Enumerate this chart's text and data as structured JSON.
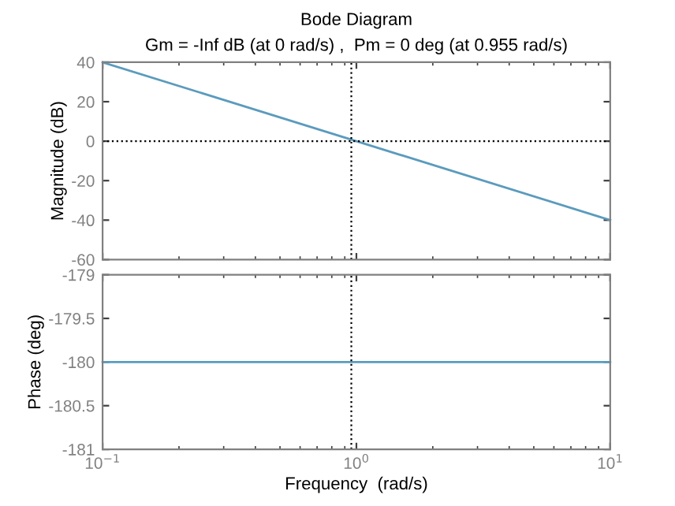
{
  "chart_data": [
    {
      "type": "line",
      "title": "Bode Diagram",
      "subtitle": "Gm = -Inf dB (at 0 rad/s) ,  Pm = 0 deg (at 0.955 rad/s)",
      "ylabel": "Magnitude (dB)",
      "log": "x",
      "x": [
        0.1,
        1,
        10
      ],
      "series": [
        {
          "color": "#5b9bbd",
          "values": [
            40,
            0,
            -40
          ]
        }
      ],
      "xlim": [
        0.1,
        10
      ],
      "xticks": [
        0.1,
        1,
        10
      ],
      "ylim": [
        -60,
        40
      ],
      "yticks": [
        -60,
        -40,
        -20,
        0,
        20,
        40
      ],
      "tick_labels": "y",
      "ref_lines": [
        {
          "axis": "y",
          "value": 0,
          "color": "#000000",
          "line_style": "dotted"
        },
        {
          "axis": "x",
          "value": 0.955,
          "color": "#000000",
          "line_style": "dotted"
        }
      ]
    },
    {
      "type": "line",
      "ylabel": "Phase (deg)",
      "xlabel": "Frequency  (rad/s)",
      "log": "x",
      "x": [
        0.1,
        1,
        10
      ],
      "series": [
        {
          "color": "#5b9bbd",
          "values": [
            -180,
            -180,
            -180
          ]
        }
      ],
      "xlim": [
        0.1,
        10
      ],
      "xticks": [
        {
          "value": 0.1,
          "label": "10$^{−1}$"
        },
        {
          "value": 1,
          "label": "10$^{0}$"
        },
        {
          "value": 10,
          "label": "10$^{1}$"
        }
      ],
      "ylim": [
        -181,
        -179
      ],
      "yticks": [
        -181,
        -180.5,
        -180,
        -179.5,
        -179
      ],
      "ref_lines": [
        {
          "axis": "x",
          "value": 0.955,
          "color": "#000000",
          "line_style": "dotted"
        }
      ]
    }
  ]
}
